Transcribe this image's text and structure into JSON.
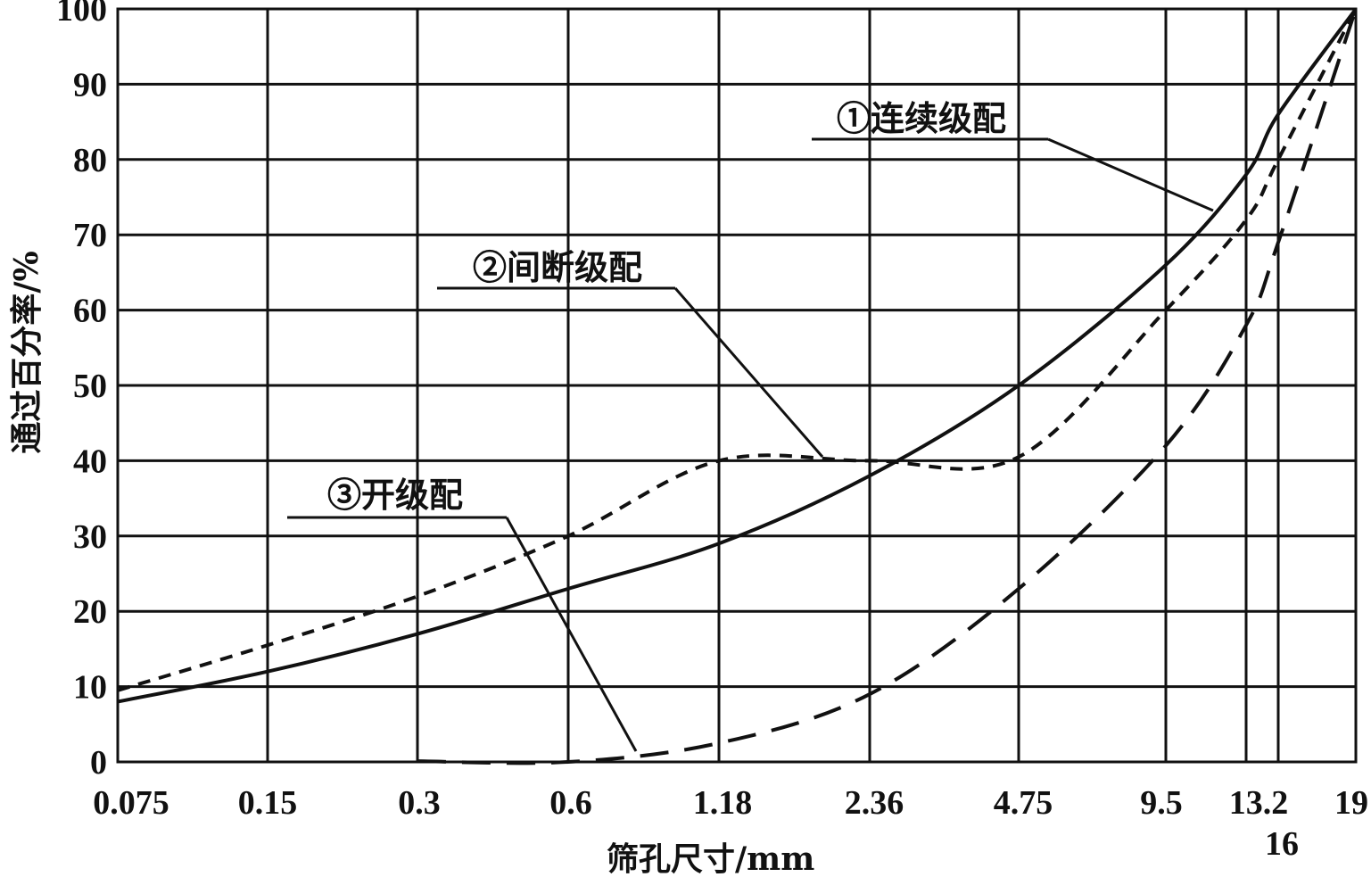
{
  "chart_data": {
    "type": "line",
    "xlabel": "筛孔尺寸/mm",
    "ylabel": "通过百分率/%",
    "x_scale": "categorical (sieve sizes, near power-0.45 spacing)",
    "x_ticks": [
      "0.075",
      "0.15",
      "0.3",
      "0.6",
      "1.18",
      "2.36",
      "4.75",
      "9.5",
      "13.2",
      "16",
      "19"
    ],
    "y_ticks": [
      "0",
      "10",
      "20",
      "30",
      "40",
      "50",
      "60",
      "70",
      "80",
      "90",
      "100"
    ],
    "ylim": [
      0,
      100
    ],
    "grid": true,
    "legend": "none (curves labeled with leader-line annotations)",
    "series": [
      {
        "name": "①连续级配",
        "line_style": "solid",
        "points": [
          [
            "0.075",
            8
          ],
          [
            "0.15",
            12
          ],
          [
            "0.3",
            17
          ],
          [
            "0.6",
            23
          ],
          [
            "1.18",
            29
          ],
          [
            "2.36",
            38
          ],
          [
            "4.75",
            50
          ],
          [
            "9.5",
            66
          ],
          [
            "13.2",
            78
          ],
          [
            "16",
            86
          ],
          [
            "19",
            100
          ]
        ]
      },
      {
        "name": "②间断级配",
        "line_style": "short-dashed",
        "points": [
          [
            "0.075",
            9.5
          ],
          [
            "0.15",
            15.5
          ],
          [
            "0.3",
            22
          ],
          [
            "0.6",
            30
          ],
          [
            "1.18",
            40
          ],
          [
            "2.36",
            40
          ],
          [
            "4.75",
            40.5
          ],
          [
            "9.5",
            60
          ],
          [
            "13.2",
            72
          ],
          [
            "16",
            80
          ],
          [
            "19",
            100
          ]
        ]
      },
      {
        "name": "③开级配",
        "line_style": "long-dashed",
        "points": [
          [
            "0.3",
            0.1
          ],
          [
            "0.6",
            0
          ],
          [
            "1.18",
            2.5
          ],
          [
            "2.36",
            9
          ],
          [
            "4.75",
            23
          ],
          [
            "9.5",
            42
          ],
          [
            "13.2",
            58
          ],
          [
            "16",
            69
          ],
          [
            "19",
            100
          ]
        ]
      }
    ],
    "annotations": [
      {
        "label": "①连续级配",
        "series": "①连续级配"
      },
      {
        "label": "②间断级配",
        "series": "②间断级配"
      },
      {
        "label": "③开级配",
        "series": "③开级配"
      }
    ]
  }
}
